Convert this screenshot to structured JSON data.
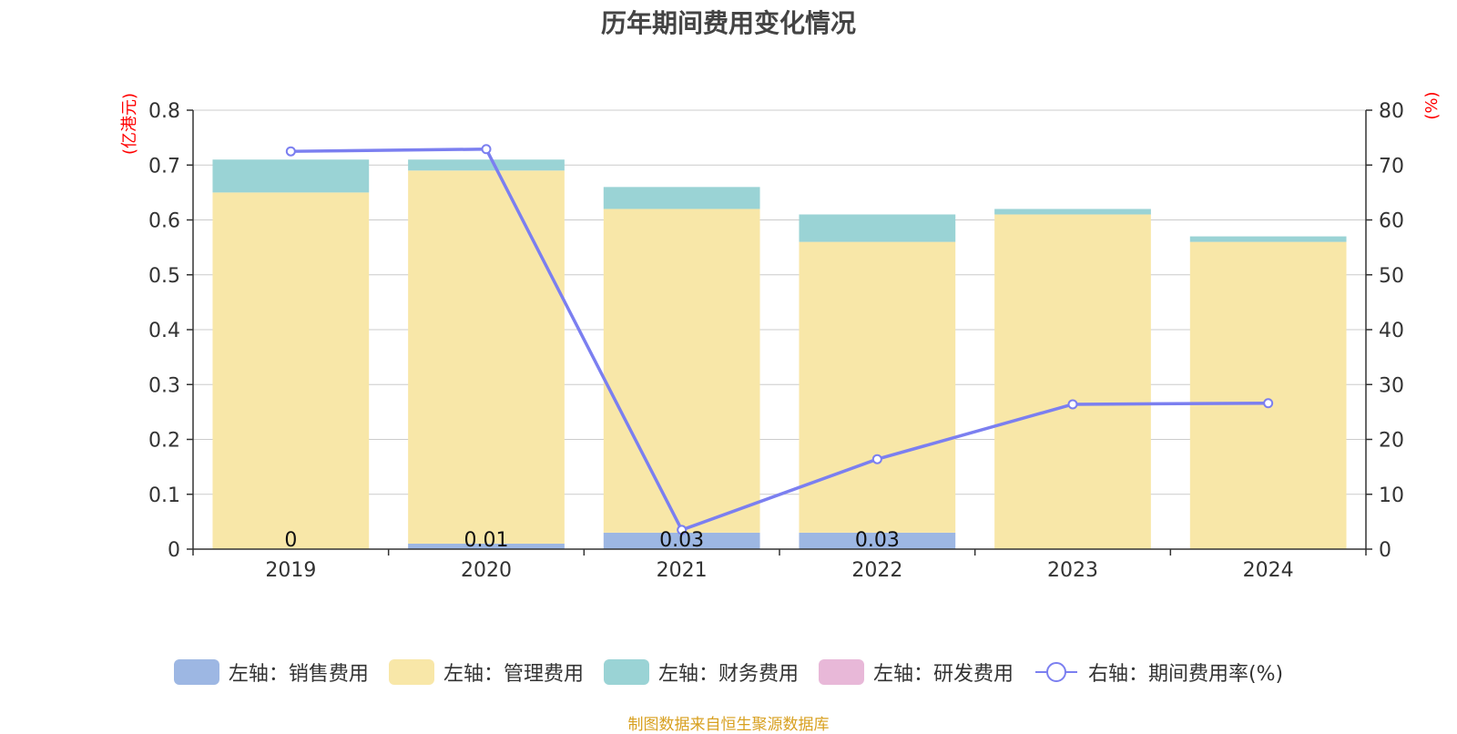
{
  "title": "历年期间费用变化情况",
  "source_note": "制图数据来自恒生聚源数据库",
  "colors": {
    "sales": "#9db7e3",
    "admin": "#f8e7a8",
    "finance": "#9ad3d5",
    "rd": "#e8b8d8",
    "rate_line": "#7b7ff0",
    "axis_unit": "#ff0000",
    "grid": "#cccccc",
    "text": "#333333"
  },
  "legend": [
    {
      "label": "左轴：销售费用",
      "type": "swatch",
      "color_key": "sales"
    },
    {
      "label": "左轴：管理费用",
      "type": "swatch",
      "color_key": "admin"
    },
    {
      "label": "左轴：财务费用",
      "type": "swatch",
      "color_key": "finance"
    },
    {
      "label": "左轴：研发费用",
      "type": "swatch",
      "color_key": "rd"
    },
    {
      "label": "右轴：期间费用率(%)",
      "type": "line",
      "color_key": "rate_line"
    }
  ],
  "chart_data": {
    "type": "bar",
    "stacked": true,
    "categories": [
      "2019",
      "2020",
      "2021",
      "2022",
      "2023",
      "2024"
    ],
    "left_axis": {
      "unit_label": "(亿港元)",
      "ylim": [
        0,
        0.8
      ],
      "ticks": [
        "0",
        "0.1",
        "0.2",
        "0.3",
        "0.4",
        "0.5",
        "0.6",
        "0.7",
        "0.8"
      ]
    },
    "right_axis": {
      "unit_label": "(%)",
      "ylim": [
        0,
        80
      ],
      "ticks": [
        "0",
        "10",
        "20",
        "30",
        "40",
        "50",
        "60",
        "70",
        "80"
      ]
    },
    "series": [
      {
        "name": "销售费用",
        "key": "sales",
        "axis": "left",
        "values": [
          0,
          0.01,
          0.03,
          0.03,
          0,
          0
        ],
        "data_labels": [
          "0",
          "0.01",
          "0.03",
          "0.03",
          "",
          ""
        ]
      },
      {
        "name": "管理费用",
        "key": "admin",
        "axis": "left",
        "values": [
          0.65,
          0.68,
          0.59,
          0.53,
          0.61,
          0.56
        ]
      },
      {
        "name": "财务费用",
        "key": "finance",
        "axis": "left",
        "values": [
          0.06,
          0.02,
          0.04,
          0.05,
          0.01,
          0.01
        ]
      },
      {
        "name": "研发费用",
        "key": "rd",
        "axis": "left",
        "values": [
          0,
          0,
          0,
          0,
          0,
          0
        ]
      },
      {
        "name": "期间费用率(%)",
        "key": "rate_line",
        "axis": "right",
        "type": "line",
        "values": [
          72.5,
          72.9,
          3.5,
          16.4,
          26.4,
          26.6
        ]
      }
    ],
    "grid": true,
    "legend_position": "bottom"
  }
}
